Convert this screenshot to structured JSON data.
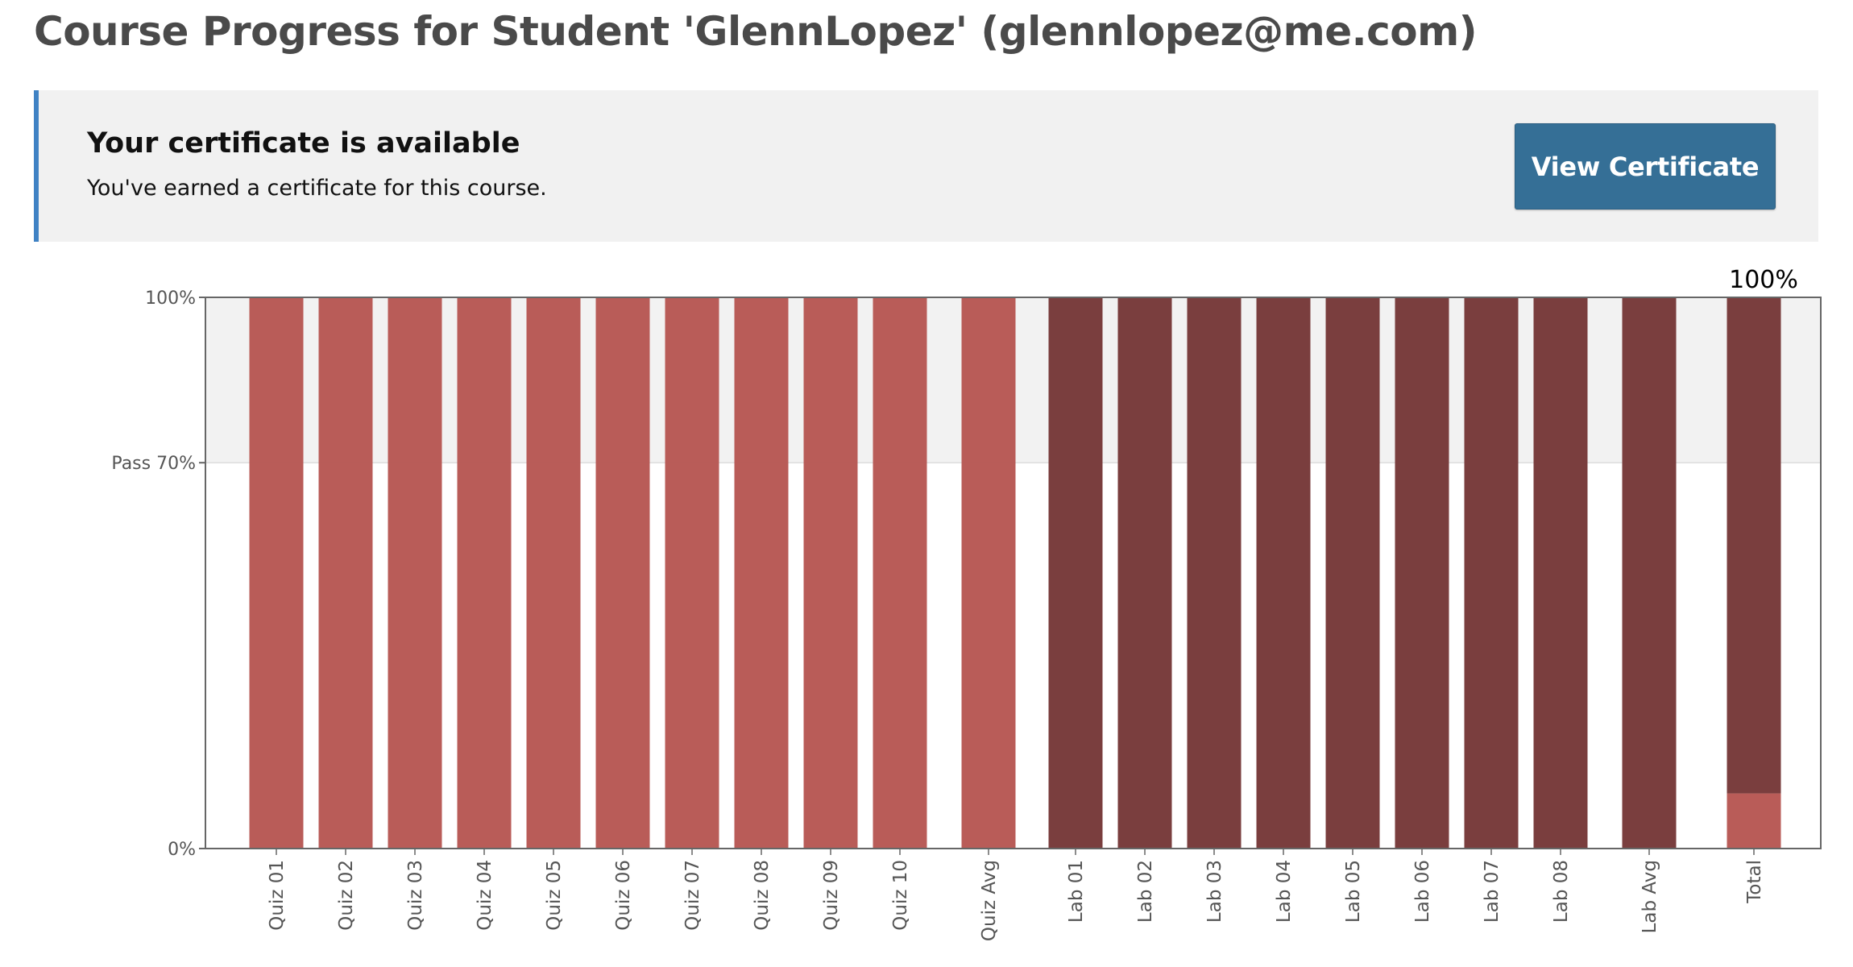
{
  "page": {
    "title": "Course Progress for Student 'GlennLopez' (glennlopez@me.com)"
  },
  "certificate": {
    "heading": "Your certificate is available",
    "message": "You've earned a certificate for this course.",
    "button_label": "View Certificate",
    "accent_color": "#3f82c4",
    "button_color": "#356f96"
  },
  "chart_data": {
    "type": "bar",
    "title": "",
    "xlabel": "",
    "ylabel": "",
    "ylim": [
      0,
      100
    ],
    "y_ticks": [
      {
        "value": 100,
        "label": "100%"
      },
      {
        "value": 70,
        "label": "Pass 70%"
      },
      {
        "value": 0,
        "label": "0%"
      }
    ],
    "pass_threshold": 70,
    "grid": false,
    "categories": [
      "Quiz 01",
      "Quiz 02",
      "Quiz 03",
      "Quiz 04",
      "Quiz 05",
      "Quiz 06",
      "Quiz 07",
      "Quiz 08",
      "Quiz 09",
      "Quiz 10",
      "Quiz Avg",
      "Lab 01",
      "Lab 02",
      "Lab 03",
      "Lab 04",
      "Lab 05",
      "Lab 06",
      "Lab 07",
      "Lab 08",
      "Lab Avg",
      "Total"
    ],
    "values": [
      100,
      100,
      100,
      100,
      100,
      100,
      100,
      100,
      100,
      100,
      100,
      100,
      100,
      100,
      100,
      100,
      100,
      100,
      100,
      100,
      100
    ],
    "groups": [
      "quiz",
      "quiz",
      "quiz",
      "quiz",
      "quiz",
      "quiz",
      "quiz",
      "quiz",
      "quiz",
      "quiz",
      "quiz",
      "lab",
      "lab",
      "lab",
      "lab",
      "lab",
      "lab",
      "lab",
      "lab",
      "lab",
      "total"
    ],
    "total_breakdown": {
      "quiz": 10,
      "lab": 90
    },
    "total_label": "100%",
    "colors": {
      "quiz": "#b5534f",
      "lab": "#733434",
      "pass_band": "#f2f2f2",
      "axis": "#666666"
    }
  }
}
